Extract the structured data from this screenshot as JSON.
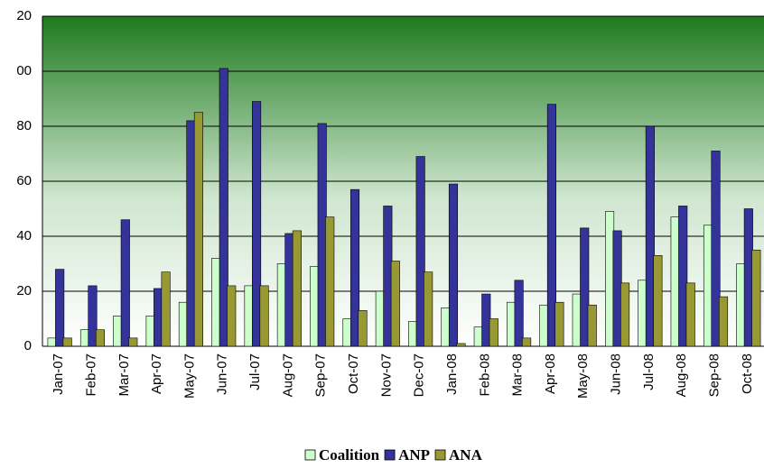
{
  "chart_data": {
    "type": "bar",
    "categories": [
      "Jan-07",
      "Feb-07",
      "Mar-07",
      "Apr-07",
      "May-07",
      "Jun-07",
      "Jul-07",
      "Aug-07",
      "Sep-07",
      "Oct-07",
      "Nov-07",
      "Dec-07",
      "Jan-08",
      "Feb-08",
      "Mar-08",
      "Apr-08",
      "May-08",
      "Jun-08",
      "Jul-08",
      "Aug-08",
      "Sep-08",
      "Oct-08"
    ],
    "series": [
      {
        "name": "Coalition",
        "color": "#ccffcc",
        "values": [
          3,
          6,
          11,
          11,
          16,
          32,
          22,
          30,
          29,
          10,
          20,
          9,
          14,
          7,
          16,
          15,
          19,
          49,
          24,
          47,
          44,
          30
        ]
      },
      {
        "name": "ANP",
        "color": "#333399",
        "values": [
          28,
          22,
          46,
          21,
          82,
          101,
          89,
          41,
          81,
          57,
          51,
          69,
          59,
          19,
          24,
          88,
          43,
          42,
          80,
          51,
          71,
          50
        ]
      },
      {
        "name": "ANA",
        "color": "#999933",
        "values": [
          3,
          6,
          3,
          27,
          85,
          22,
          22,
          42,
          47,
          13,
          31,
          27,
          1,
          10,
          3,
          16,
          15,
          23,
          33,
          23,
          18,
          35
        ]
      }
    ],
    "ylim": [
      0,
      120
    ],
    "yticks": [
      0,
      20,
      40,
      60,
      80,
      {
        "value": 100,
        "label": "00"
      },
      {
        "value": 120,
        "label": "20"
      }
    ],
    "grid": true,
    "legend": "bottom"
  }
}
